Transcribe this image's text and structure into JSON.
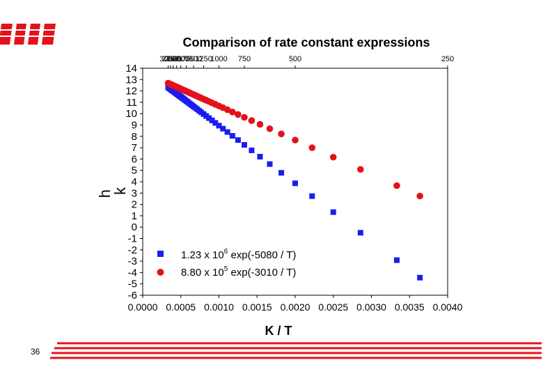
{
  "slide": {
    "page_number": "36",
    "accent_color": "#e3121b"
  },
  "chart_data": {
    "type": "scatter",
    "title": "Comparison of rate constant expressions",
    "xlabel": "K / T",
    "ylabel": "k",
    "ylabel_prefix": "h",
    "xlim": [
      0.0,
      0.004
    ],
    "ylim": [
      -6,
      14
    ],
    "x_ticks": [
      "0.0000",
      "0.0005",
      "0.0010",
      "0.0015",
      "0.0020",
      "0.0025",
      "0.0030",
      "0.0035",
      "0.0040"
    ],
    "y_ticks": [
      "14",
      "13",
      "12",
      "11",
      "10",
      "9",
      "8",
      "7",
      "6",
      "5",
      "4",
      "3",
      "2",
      "1",
      "0",
      "-1",
      "-2",
      "-3",
      "-4",
      "-5",
      "-6"
    ],
    "top_axis_ticks": [
      {
        "T": 3000,
        "label": "3000"
      },
      {
        "T": 2750,
        "label": "2750"
      },
      {
        "T": 2500,
        "label": "2500"
      },
      {
        "T": 2250,
        "label": "2250"
      },
      {
        "T": 2000,
        "label": "2000"
      },
      {
        "T": 1750,
        "label": "1750"
      },
      {
        "T": 1500,
        "label": "1500"
      },
      {
        "T": 1250,
        "label": "1250"
      },
      {
        "T": 1000,
        "label": "1000"
      },
      {
        "T": 750,
        "label": "750"
      },
      {
        "T": 500,
        "label": "500"
      },
      {
        "T": 250,
        "label": "250"
      }
    ],
    "series": [
      {
        "name": "1.23 x 10^6 exp(-5080 / T)",
        "legend_pre": "1.23 x 10",
        "legend_exp": "6",
        "legend_post": " exp(-5080 / T)",
        "A": 1230000,
        "Ea": 5080,
        "marker": "square",
        "color": "#1c1cf0"
      },
      {
        "name": "8.80 x 10^5 exp(-3010 / T)",
        "legend_pre": "8.80 x 10",
        "legend_exp": "5",
        "legend_post": " exp(-3010 / T)",
        "A": 880000,
        "Ea": 3010,
        "marker": "circle",
        "color": "#e3121b"
      }
    ],
    "temperatures_K": [
      3000,
      2950,
      2900,
      2850,
      2800,
      2750,
      2700,
      2650,
      2600,
      2550,
      2500,
      2450,
      2400,
      2350,
      2300,
      2250,
      2200,
      2150,
      2100,
      2050,
      2000,
      1950,
      1900,
      1850,
      1800,
      1750,
      1700,
      1650,
      1600,
      1550,
      1500,
      1450,
      1400,
      1350,
      1300,
      1250,
      1200,
      1150,
      1100,
      1050,
      1000,
      950,
      900,
      850,
      800,
      750,
      700,
      650,
      600,
      550,
      500,
      450,
      400,
      350,
      300,
      275
    ]
  }
}
